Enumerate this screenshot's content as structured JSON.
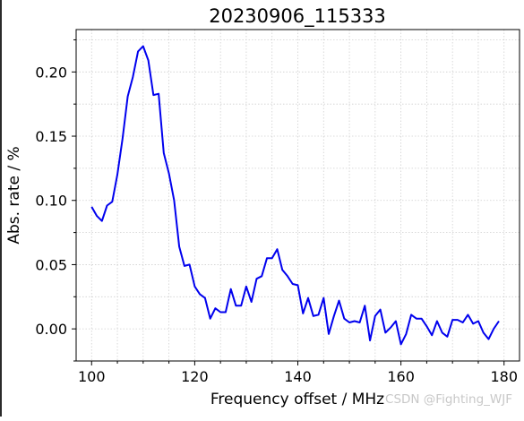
{
  "chart_data": {
    "type": "line",
    "title": "20230906_115333",
    "xlabel": "Frequency offset / MHz",
    "ylabel": "Abs. rate / %",
    "xlim": [
      97,
      183
    ],
    "ylim": [
      -0.025,
      0.233
    ],
    "xticks": [
      100,
      120,
      140,
      160,
      180
    ],
    "xtick_labels": [
      "100",
      "120",
      "140",
      "160",
      "180"
    ],
    "yticks": [
      0.0,
      0.05,
      0.1,
      0.15,
      0.2
    ],
    "ytick_labels": [
      "0.00",
      "0.05",
      "0.10",
      "0.15",
      "0.20"
    ],
    "grid": true,
    "grid_style": "dotted",
    "line_color": "#0000ee",
    "x": [
      100,
      101,
      102,
      103,
      104,
      105,
      106,
      107,
      108,
      109,
      110,
      111,
      112,
      113,
      114,
      115,
      116,
      117,
      118,
      119,
      120,
      121,
      122,
      123,
      124,
      125,
      126,
      127,
      128,
      129,
      130,
      131,
      132,
      133,
      134,
      135,
      136,
      137,
      138,
      139,
      140,
      141,
      142,
      143,
      144,
      145,
      146,
      147,
      148,
      149,
      150,
      151,
      152,
      153,
      154,
      155,
      156,
      157,
      158,
      159,
      160,
      161,
      162,
      163,
      164,
      165,
      166,
      167,
      168,
      169,
      170,
      171,
      172,
      173,
      174,
      175,
      176,
      177,
      178,
      179
    ],
    "y": [
      0.095,
      0.088,
      0.084,
      0.096,
      0.099,
      0.12,
      0.148,
      0.181,
      0.196,
      0.216,
      0.22,
      0.209,
      0.182,
      0.183,
      0.137,
      0.121,
      0.1,
      0.064,
      0.049,
      0.05,
      0.033,
      0.027,
      0.024,
      0.008,
      0.016,
      0.013,
      0.013,
      0.031,
      0.018,
      0.018,
      0.033,
      0.021,
      0.039,
      0.041,
      0.055,
      0.055,
      0.062,
      0.046,
      0.041,
      0.035,
      0.034,
      0.012,
      0.024,
      0.01,
      0.011,
      0.024,
      -0.004,
      0.01,
      0.022,
      0.008,
      0.005,
      0.006,
      0.005,
      0.018,
      -0.009,
      0.01,
      0.015,
      -0.003,
      0.001,
      0.006,
      -0.012,
      -0.004,
      0.011,
      0.008,
      0.008,
      0.002,
      -0.005,
      0.006,
      -0.003,
      -0.006,
      0.007,
      0.007,
      0.005,
      0.011,
      0.004,
      0.006,
      -0.003,
      -0.008,
      0.0,
      0.006
    ]
  },
  "watermark": "CSDN @Fighting_WJF"
}
